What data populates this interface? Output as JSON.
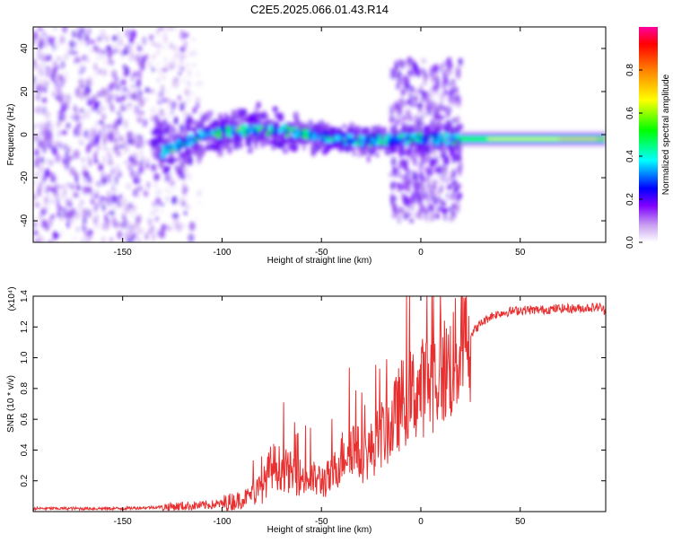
{
  "title": "C2E5.2025.066.01.43.R14",
  "chart_data": [
    {
      "type": "heatmap",
      "xlabel": "Height of straight line (km)",
      "ylabel": "Frequency (Hz)",
      "xlim": [
        -195,
        93
      ],
      "ylim": [
        -50,
        50
      ],
      "xticks": [
        -150,
        -100,
        -50,
        0,
        50
      ],
      "yticks": [
        -40,
        -20,
        0,
        20,
        40
      ],
      "colorbar": {
        "label": "Normalized spectral amplitude",
        "range": [
          0,
          1
        ],
        "ticks": [
          "0.0",
          "0.2",
          "0.4",
          "0.6",
          "0.8"
        ],
        "colormap": [
          "#ffffff",
          "#c8a0f0",
          "#8000ff",
          "#0000ff",
          "#00ffff",
          "#00ff00",
          "#ffff00",
          "#ff8000",
          "#ff0000",
          "#ff00a0"
        ]
      },
      "ridge": [
        {
          "x": -130,
          "y": -8
        },
        {
          "x": -110,
          "y": 0
        },
        {
          "x": -90,
          "y": 2
        },
        {
          "x": -70,
          "y": 2
        },
        {
          "x": -50,
          "y": -1
        },
        {
          "x": -30,
          "y": -3
        },
        {
          "x": -10,
          "y": -2
        },
        {
          "x": 20,
          "y": -2
        },
        {
          "x": 93,
          "y": -2
        }
      ]
    },
    {
      "type": "line",
      "xlabel": "Height of straight line (km)",
      "ylabel": "SNR (10 * v/v)",
      "yscale_label": "(x10⁴)",
      "xlim": [
        -195,
        93
      ],
      "ylim": [
        0,
        1.4
      ],
      "xticks": [
        -150,
        -100,
        -50,
        0,
        50
      ],
      "yticks": [
        "0.2",
        "0.4",
        "0.6",
        "0.8",
        "1.0",
        "1.2",
        "1.4"
      ],
      "color": "#e83030",
      "series": [
        {
          "x": [
            -195,
            -170,
            -150,
            -130,
            -110,
            -100,
            -90,
            -80,
            -75,
            -70,
            -60,
            -50,
            -45,
            -40,
            -35,
            -30,
            -25,
            -20,
            -15,
            -10,
            -5,
            0,
            5,
            10,
            15,
            20,
            25,
            30,
            35,
            40,
            45,
            50,
            60,
            70,
            80,
            90,
            93
          ],
          "y": [
            0.02,
            0.02,
            0.02,
            0.03,
            0.04,
            0.05,
            0.08,
            0.15,
            0.3,
            0.28,
            0.22,
            0.2,
            0.22,
            0.35,
            0.45,
            0.35,
            0.4,
            0.5,
            0.55,
            0.7,
            0.75,
            0.8,
            0.85,
            0.9,
            0.95,
            1.05,
            1.15,
            1.22,
            1.27,
            1.29,
            1.3,
            1.31,
            1.31,
            1.32,
            1.32,
            1.33,
            1.3
          ]
        }
      ]
    }
  ]
}
